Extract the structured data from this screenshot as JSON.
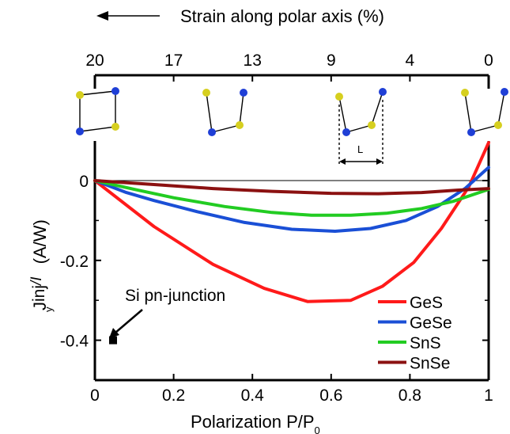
{
  "chart_data": {
    "type": "line",
    "xlabel": "Polarization P/P",
    "xlabel_sub": "0",
    "ylabel_main": "J",
    "ylabel_sup": "y",
    "ylabel_sub": "inj",
    "ylabel_div": "/I",
    "ylabel_unit": "(A/W)",
    "top_axis_label": "Strain along polar axis (%)",
    "xlim": [
      0,
      1
    ],
    "ylim": [
      -0.5,
      0.1
    ],
    "x_ticks": [
      0,
      0.2,
      0.4,
      0.6,
      0.8,
      1
    ],
    "x_tick_labels": [
      "0",
      "0.2",
      "0.4",
      "0.6",
      "0.8",
      "1"
    ],
    "y_ticks": [
      0,
      -0.2,
      -0.4
    ],
    "y_tick_labels": [
      "0",
      "-0.2",
      "-0.4"
    ],
    "top_ticks": [
      0,
      0.2,
      0.4,
      0.6,
      0.8,
      1
    ],
    "top_tick_labels": [
      "20",
      "17",
      "13",
      "9",
      "4",
      "0"
    ],
    "legend_position": "bottom-right",
    "series": [
      {
        "name": "GeS",
        "color": "#ff1a1a",
        "x": [
          0,
          0.15,
          0.3,
          0.43,
          0.54,
          0.65,
          0.73,
          0.81,
          0.88,
          0.95,
          1.0
        ],
        "y": [
          0,
          -0.115,
          -0.21,
          -0.27,
          -0.303,
          -0.3,
          -0.265,
          -0.205,
          -0.12,
          -0.015,
          0.095
        ]
      },
      {
        "name": "GeSe",
        "color": "#1a4fd6",
        "x": [
          0,
          0.08,
          0.15,
          0.26,
          0.38,
          0.5,
          0.61,
          0.7,
          0.79,
          0.87,
          0.94,
          1.0
        ],
        "y": [
          0,
          -0.03,
          -0.05,
          -0.078,
          -0.105,
          -0.122,
          -0.127,
          -0.12,
          -0.1,
          -0.065,
          -0.02,
          0.033
        ]
      },
      {
        "name": "SnS",
        "color": "#22cc22",
        "x": [
          0,
          0.1,
          0.2,
          0.33,
          0.45,
          0.55,
          0.65,
          0.74,
          0.83,
          0.91,
          1.0
        ],
        "y": [
          0,
          -0.022,
          -0.043,
          -0.065,
          -0.08,
          -0.087,
          -0.087,
          -0.082,
          -0.07,
          -0.052,
          -0.022
        ]
      },
      {
        "name": "SnSe",
        "color": "#8b1111",
        "x": [
          0,
          0.15,
          0.3,
          0.45,
          0.6,
          0.72,
          0.83,
          0.92,
          1.0
        ],
        "y": [
          0,
          -0.01,
          -0.02,
          -0.027,
          -0.032,
          -0.033,
          -0.03,
          -0.024,
          -0.02
        ]
      }
    ],
    "marker_point": {
      "label": "Si pn-junction",
      "x": 0,
      "y": -0.4
    },
    "structure_label": "L",
    "colors": {
      "atom_yellow": "#d6cf1f",
      "atom_blue": "#1f3fd6"
    }
  }
}
